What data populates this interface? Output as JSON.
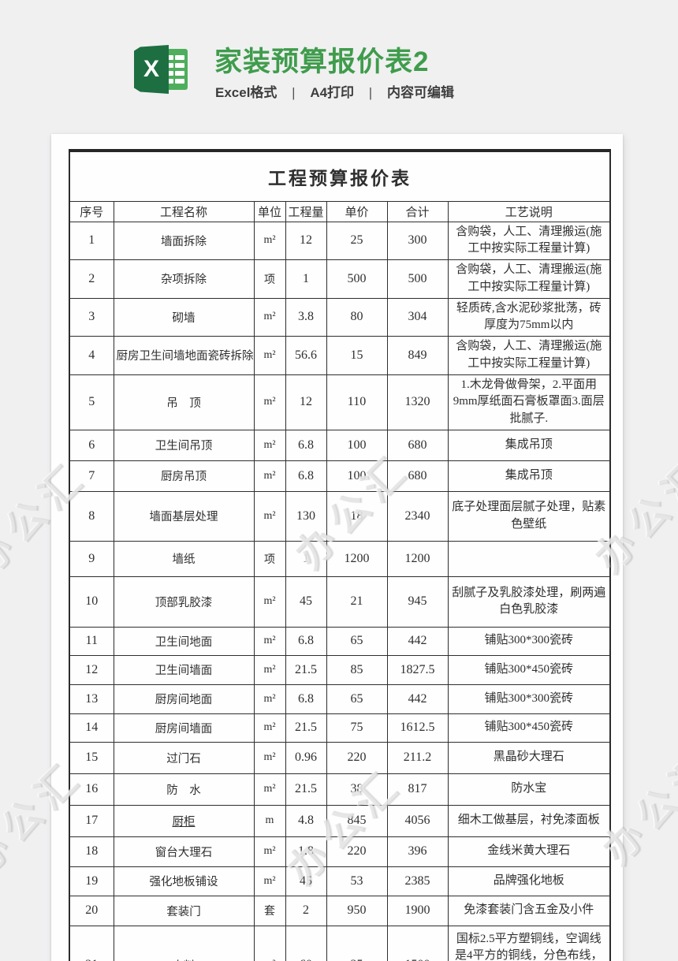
{
  "header": {
    "title": "家装预算报价表2",
    "subtitle": [
      "Excel格式",
      "A4打印",
      "内容可编辑"
    ],
    "separator": "|",
    "icon_letter": "X",
    "title_color": "#3f9c4c"
  },
  "watermark": {
    "text": "办公汇"
  },
  "sheet": {
    "table_title": "工程预算报价表",
    "columns": [
      "序号",
      "工程名称",
      "单位",
      "工程量",
      "单价",
      "合计",
      "工艺说明"
    ],
    "rows": [
      {
        "no": "1",
        "name": "墙面拆除",
        "unit": "m²",
        "qty": "12",
        "price": "25",
        "total": "300",
        "desc": "含购袋，人工、清理搬运(施工中按实际工程量计算)"
      },
      {
        "no": "2",
        "name": "杂项拆除",
        "unit": "项",
        "qty": "1",
        "price": "500",
        "total": "500",
        "desc": "含购袋，人工、清理搬运(施工中按实际工程量计算)"
      },
      {
        "no": "3",
        "name": "砌墙",
        "unit": "m²",
        "qty": "3.8",
        "price": "80",
        "total": "304",
        "desc": "轻质砖,含水泥砂浆批荡，砖厚度为75mm以内"
      },
      {
        "no": "4",
        "name": "厨房卫生间墙地面瓷砖拆除",
        "unit": "m²",
        "qty": "56.6",
        "price": "15",
        "total": "849",
        "desc": "含购袋，人工、清理搬运(施工中按实际工程量计算)"
      },
      {
        "no": "5",
        "name": "吊　顶",
        "unit": "m²",
        "qty": "12",
        "price": "110",
        "total": "1320",
        "desc": "1.木龙骨做骨架，2.平面用9mm厚纸面石膏板罩面3.面层批腻子."
      },
      {
        "no": "6",
        "name": "卫生间吊顶",
        "unit": "m²",
        "qty": "6.8",
        "price": "100",
        "total": "680",
        "desc": "集成吊顶"
      },
      {
        "no": "7",
        "name": "厨房吊顶",
        "unit": "m²",
        "qty": "6.8",
        "price": "100",
        "total": "680",
        "desc": "集成吊顶"
      },
      {
        "no": "8",
        "name": "墙面基层处理",
        "unit": "m²",
        "qty": "130",
        "price": "18",
        "total": "2340",
        "desc": "底子处理面层腻子处理，贴素色壁纸"
      },
      {
        "no": "9",
        "name": "墙纸",
        "unit": "项",
        "qty": "1",
        "price": "1200",
        "total": "1200",
        "desc": ""
      },
      {
        "no": "10",
        "name": "顶部乳胶漆",
        "unit": "m²",
        "qty": "45",
        "price": "21",
        "total": "945",
        "desc": "刮腻子及乳胶漆处理，刷两遍白色乳胶漆"
      },
      {
        "no": "11",
        "name": "卫生间地面",
        "unit": "m²",
        "qty": "6.8",
        "price": "65",
        "total": "442",
        "desc": "铺贴300*300瓷砖"
      },
      {
        "no": "12",
        "name": "卫生间墙面",
        "unit": "m²",
        "qty": "21.5",
        "price": "85",
        "total": "1827.5",
        "desc": "铺贴300*450瓷砖"
      },
      {
        "no": "13",
        "name": "厨房间地面",
        "unit": "m²",
        "qty": "6.8",
        "price": "65",
        "total": "442",
        "desc": "铺贴300*300瓷砖"
      },
      {
        "no": "14",
        "name": "厨房间墙面",
        "unit": "m²",
        "qty": "21.5",
        "price": "75",
        "total": "1612.5",
        "desc": "铺贴300*450瓷砖"
      },
      {
        "no": "15",
        "name": "过门石",
        "unit": "m²",
        "qty": "0.96",
        "price": "220",
        "total": "211.2",
        "desc": "黑晶砂大理石"
      },
      {
        "no": "16",
        "name": "防　水",
        "unit": "m²",
        "qty": "21.5",
        "price": "38",
        "total": "817",
        "desc": "防水宝"
      },
      {
        "no": "17",
        "name": "厨柜",
        "underline": true,
        "unit": "m",
        "qty": "4.8",
        "price": "845",
        "total": "4056",
        "desc": "细木工做基层，衬免漆面板"
      },
      {
        "no": "18",
        "name": "窗台大理石",
        "unit": "m²",
        "qty": "1.8",
        "price": "220",
        "total": "396",
        "desc": "金线米黄大理石"
      },
      {
        "no": "19",
        "name": "强化地板铺设",
        "unit": "m²",
        "qty": "45",
        "price": "53",
        "total": "2385",
        "desc": "品牌强化地板"
      },
      {
        "no": "20",
        "name": "套装门",
        "unit": "套",
        "qty": "2",
        "price": "950",
        "total": "1900",
        "desc": "免漆套装门含五金及小件"
      },
      {
        "no": "21",
        "name": "电料",
        "unit": "m²",
        "qty": "60",
        "price": "25",
        "total": "1500",
        "desc": "国标2.5平方塑铜线，空调线是4平方的铜线，分色布线，顶面混凝土剔槽用三芯护套线，阻"
      }
    ]
  }
}
